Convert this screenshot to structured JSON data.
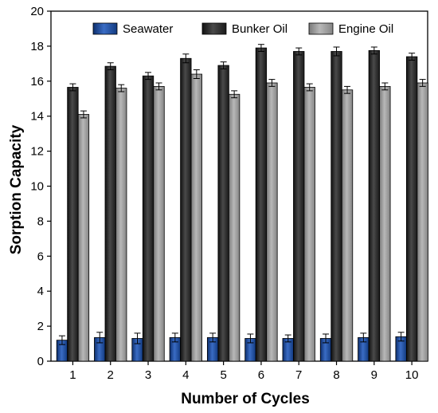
{
  "chart_data": {
    "type": "bar",
    "title": "",
    "xlabel": "Number of Cycles",
    "ylabel": "Sorption Capacity",
    "categories": [
      "1",
      "2",
      "3",
      "4",
      "5",
      "6",
      "7",
      "8",
      "9",
      "10"
    ],
    "ylim": [
      0,
      20
    ],
    "yticks": [
      0,
      2,
      4,
      6,
      8,
      10,
      12,
      14,
      16,
      18,
      20
    ],
    "legend_position": "top",
    "grid": false,
    "series": [
      {
        "name": "Seawater",
        "color": "#1f4ea3",
        "values": [
          1.2,
          1.35,
          1.3,
          1.35,
          1.35,
          1.3,
          1.3,
          1.3,
          1.35,
          1.4
        ],
        "errors": [
          0.25,
          0.3,
          0.3,
          0.25,
          0.25,
          0.25,
          0.2,
          0.25,
          0.25,
          0.25
        ]
      },
      {
        "name": "Bunker Oil",
        "color": "#2a2a2a",
        "values": [
          15.65,
          16.85,
          16.3,
          17.3,
          16.9,
          17.9,
          17.7,
          17.7,
          17.75,
          17.4
        ],
        "errors": [
          0.2,
          0.2,
          0.2,
          0.25,
          0.2,
          0.2,
          0.2,
          0.25,
          0.2,
          0.2
        ]
      },
      {
        "name": "Engine Oil",
        "color": "#9a9a9a",
        "values": [
          14.1,
          15.6,
          15.7,
          16.4,
          15.25,
          15.9,
          15.65,
          15.5,
          15.7,
          15.9
        ],
        "errors": [
          0.2,
          0.2,
          0.2,
          0.25,
          0.2,
          0.2,
          0.2,
          0.2,
          0.2,
          0.2
        ]
      }
    ]
  }
}
